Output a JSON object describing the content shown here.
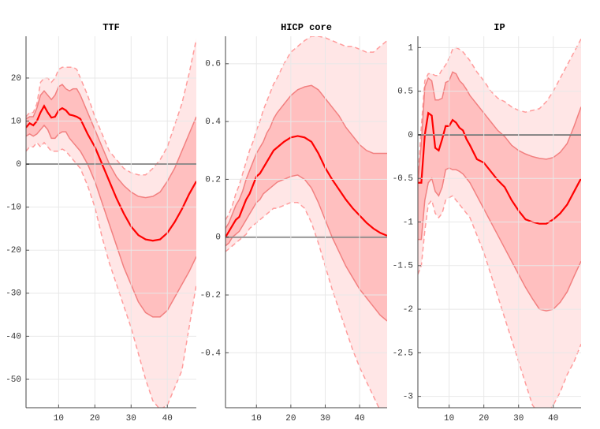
{
  "chart_data": [
    {
      "type": "line",
      "title": "TTF",
      "x": [
        1,
        2,
        3,
        4,
        5,
        6,
        7,
        8,
        9,
        10,
        11,
        12,
        13,
        14,
        15,
        16,
        18,
        20,
        22,
        24,
        26,
        28,
        30,
        32,
        34,
        36,
        38,
        40,
        42,
        44,
        46,
        48
      ],
      "xlim": [
        1,
        48
      ],
      "xticks": [
        10,
        20,
        30,
        40
      ],
      "ylim": [
        -56.6,
        29.7
      ],
      "yticks": [
        20,
        10,
        0,
        -10,
        -20,
        -30,
        -40,
        -50
      ],
      "grid": true,
      "reference_line": 0,
      "bands": [
        {
          "fill": "#ffe6e6",
          "color": "#ff9c9c",
          "dashed": true,
          "upper": [
            11,
            12,
            12,
            14,
            19,
            20,
            20,
            19,
            20,
            22,
            22.5,
            22.5,
            22.5,
            22.5,
            22,
            20,
            16,
            11,
            7,
            3,
            1,
            -1,
            -2,
            -2.5,
            -2.5,
            -1,
            1,
            4,
            9,
            14,
            21,
            29
          ],
          "lower": [
            3,
            4,
            4,
            5,
            4,
            5,
            4,
            3,
            3,
            3,
            3.5,
            3,
            2,
            1,
            0,
            -1,
            -5,
            -10,
            -17,
            -23,
            -28,
            -33,
            -38,
            -44,
            -50,
            -55,
            -57,
            -56,
            -52,
            -48,
            -38,
            -28
          ]
        },
        {
          "fill": "#ffbfbf",
          "color": "#f28080",
          "dashed": false,
          "upper": [
            10.5,
            11,
            11,
            13,
            16,
            17,
            16,
            15,
            16,
            18,
            18.5,
            17.5,
            17,
            17.5,
            17.5,
            16,
            12,
            8,
            4,
            0,
            -3,
            -5,
            -6.5,
            -7.5,
            -7.8,
            -7.5,
            -6.5,
            -4,
            -1,
            3,
            7,
            11
          ],
          "lower": [
            6.5,
            7,
            6.5,
            7,
            8,
            9,
            8,
            6,
            6,
            7,
            7.5,
            7.5,
            6,
            5,
            4,
            3,
            0,
            -4,
            -9,
            -14,
            -19,
            -24,
            -28,
            -32,
            -34.5,
            -35.5,
            -35.5,
            -34,
            -31,
            -28,
            -25,
            -21.5
          ]
        }
      ],
      "series": [
        {
          "color": "#ff0000",
          "values": [
            8.5,
            9.5,
            9,
            10,
            12,
            13.5,
            12,
            10.8,
            11,
            12.5,
            13,
            12.5,
            11.5,
            11.3,
            11,
            10.5,
            7,
            4,
            0,
            -4,
            -8,
            -11.5,
            -14.5,
            -16.5,
            -17.5,
            -17.8,
            -17.5,
            -16,
            -13.5,
            -10.5,
            -7,
            -4
          ]
        }
      ]
    },
    {
      "type": "line",
      "title": "HICP core",
      "x": [
        1,
        2,
        3,
        4,
        5,
        6,
        7,
        8,
        9,
        10,
        11,
        12,
        13,
        14,
        15,
        16,
        18,
        20,
        22,
        24,
        26,
        28,
        30,
        32,
        34,
        36,
        38,
        40,
        42,
        44,
        46,
        48
      ],
      "xlim": [
        1,
        48
      ],
      "xticks": [
        10,
        20,
        30,
        40
      ],
      "ylim": [
        -0.59,
        0.695
      ],
      "yticks": [
        0.6,
        0.4,
        0.2,
        0,
        -0.2,
        -0.4
      ],
      "grid": true,
      "reference_line": 0,
      "bands": [
        {
          "fill": "#ffe6e6",
          "color": "#ff9c9c",
          "dashed": true,
          "upper": [
            0.06,
            0.08,
            0.11,
            0.15,
            0.18,
            0.22,
            0.26,
            0.3,
            0.33,
            0.37,
            0.4,
            0.44,
            0.47,
            0.5,
            0.53,
            0.55,
            0.6,
            0.64,
            0.66,
            0.68,
            0.695,
            0.695,
            0.69,
            0.68,
            0.67,
            0.66,
            0.66,
            0.65,
            0.64,
            0.64,
            0.66,
            0.68
          ],
          "lower": [
            -0.05,
            -0.04,
            -0.03,
            -0.02,
            -0.01,
            0,
            0.01,
            0.03,
            0.04,
            0.05,
            0.06,
            0.07,
            0.08,
            0.09,
            0.1,
            0.1,
            0.11,
            0.12,
            0.12,
            0.1,
            0.05,
            -0.02,
            -0.1,
            -0.18,
            -0.25,
            -0.32,
            -0.39,
            -0.45,
            -0.5,
            -0.55,
            -0.6,
            -0.65
          ]
        },
        {
          "fill": "#ffbfbf",
          "color": "#f28080",
          "dashed": false,
          "upper": [
            0.03,
            0.05,
            0.08,
            0.11,
            0.13,
            0.16,
            0.2,
            0.23,
            0.26,
            0.29,
            0.31,
            0.33,
            0.36,
            0.38,
            0.41,
            0.43,
            0.46,
            0.49,
            0.51,
            0.52,
            0.525,
            0.51,
            0.48,
            0.45,
            0.42,
            0.38,
            0.35,
            0.32,
            0.3,
            0.29,
            0.29,
            0.29
          ],
          "lower": [
            -0.03,
            -0.02,
            0,
            0.01,
            0.02,
            0.04,
            0.06,
            0.08,
            0.1,
            0.12,
            0.13,
            0.15,
            0.16,
            0.17,
            0.18,
            0.19,
            0.2,
            0.21,
            0.215,
            0.2,
            0.17,
            0.12,
            0.06,
            0,
            -0.05,
            -0.1,
            -0.14,
            -0.18,
            -0.21,
            -0.24,
            -0.27,
            -0.29
          ]
        }
      ],
      "series": [
        {
          "color": "#ff0000",
          "values": [
            0,
            0.02,
            0.04,
            0.06,
            0.07,
            0.1,
            0.13,
            0.15,
            0.18,
            0.21,
            0.22,
            0.24,
            0.26,
            0.28,
            0.3,
            0.31,
            0.33,
            0.345,
            0.35,
            0.345,
            0.33,
            0.29,
            0.24,
            0.2,
            0.165,
            0.13,
            0.1,
            0.075,
            0.05,
            0.03,
            0.015,
            0.005
          ]
        }
      ]
    },
    {
      "type": "line",
      "title": "IP",
      "x": [
        1,
        2,
        3,
        4,
        5,
        6,
        7,
        8,
        9,
        10,
        11,
        12,
        13,
        14,
        15,
        16,
        18,
        20,
        22,
        24,
        26,
        28,
        30,
        32,
        34,
        36,
        38,
        40,
        42,
        44,
        46,
        48
      ],
      "xlim": [
        1,
        48
      ],
      "xticks": [
        10,
        20,
        30,
        40
      ],
      "ylim": [
        -3.13,
        1.13
      ],
      "yticks": [
        1,
        0.5,
        0,
        -0.5,
        -1,
        -1.5,
        -2,
        -2.5,
        -3
      ],
      "grid": true,
      "reference_line": 0,
      "bands": [
        {
          "fill": "#ffe6e6",
          "color": "#ff9c9c",
          "dashed": true,
          "upper": [
            -0.5,
            0.1,
            0.62,
            0.7,
            0.7,
            0.68,
            0.68,
            0.75,
            0.8,
            0.88,
            0.98,
            1.0,
            0.98,
            0.95,
            0.9,
            0.85,
            0.72,
            0.62,
            0.5,
            0.42,
            0.38,
            0.32,
            0.28,
            0.26,
            0.28,
            0.3,
            0.38,
            0.5,
            0.65,
            0.8,
            0.95,
            1.1
          ],
          "lower": [
            -1.6,
            -1.5,
            -1.1,
            -0.8,
            -0.75,
            -0.9,
            -0.95,
            -0.9,
            -0.75,
            -0.72,
            -0.7,
            -0.75,
            -0.8,
            -0.85,
            -0.9,
            -0.95,
            -1.15,
            -1.35,
            -1.6,
            -1.85,
            -2.1,
            -2.35,
            -2.6,
            -2.85,
            -3.1,
            -3.2,
            -3.2,
            -3.1,
            -2.95,
            -2.75,
            -2.6,
            -2.4
          ]
        },
        {
          "fill": "#ffbfbf",
          "color": "#f28080",
          "dashed": false,
          "upper": [
            -0.55,
            -0.1,
            0.55,
            0.65,
            0.62,
            0.4,
            0.4,
            0.42,
            0.6,
            0.62,
            0.72,
            0.7,
            0.62,
            0.58,
            0.52,
            0.45,
            0.35,
            0.25,
            0.15,
            0.05,
            -0.02,
            -0.12,
            -0.18,
            -0.22,
            -0.25,
            -0.27,
            -0.28,
            -0.26,
            -0.2,
            -0.1,
            0.1,
            0.32
          ],
          "lower": [
            -1.2,
            -1.2,
            -0.75,
            -0.55,
            -0.5,
            -0.65,
            -0.7,
            -0.6,
            -0.4,
            -0.38,
            -0.4,
            -0.4,
            -0.42,
            -0.45,
            -0.5,
            -0.55,
            -0.7,
            -0.85,
            -1.0,
            -1.15,
            -1.3,
            -1.45,
            -1.6,
            -1.75,
            -1.88,
            -2.0,
            -2.02,
            -2.0,
            -1.92,
            -1.8,
            -1.62,
            -1.45
          ]
        }
      ],
      "series": [
        {
          "color": "#ff0000",
          "values": [
            -0.55,
            -0.55,
            0,
            0.25,
            0.22,
            -0.15,
            -0.18,
            -0.05,
            0.1,
            0.1,
            0.17,
            0.14,
            0.08,
            0.05,
            -0.05,
            -0.12,
            -0.28,
            -0.32,
            -0.42,
            -0.52,
            -0.6,
            -0.75,
            -0.87,
            -0.97,
            -1.0,
            -1.02,
            -1.02,
            -0.97,
            -0.9,
            -0.8,
            -0.65,
            -0.5
          ]
        }
      ]
    }
  ]
}
